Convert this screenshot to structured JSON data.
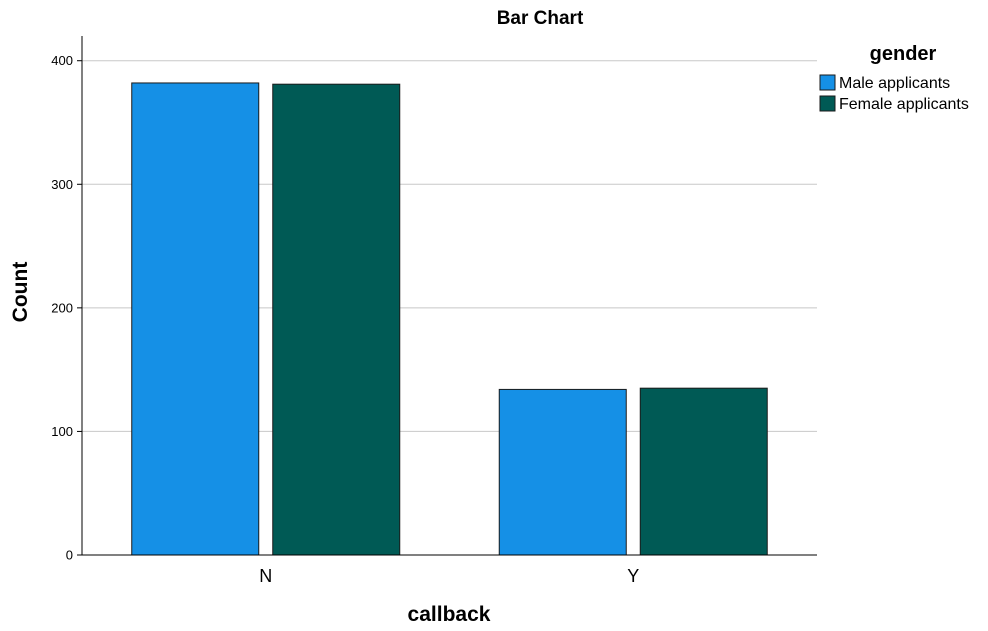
{
  "chart_data": {
    "type": "bar",
    "title": "Bar Chart",
    "xlabel": "callback",
    "ylabel": "Count",
    "categories": [
      "N",
      "Y"
    ],
    "series": [
      {
        "name": "Male applicants",
        "values": [
          382,
          134
        ],
        "color": "#1590e6"
      },
      {
        "name": "Female applicants",
        "values": [
          381,
          135
        ],
        "color": "#005a55"
      }
    ],
    "ylim": [
      0,
      420
    ],
    "yticks": [
      0,
      100,
      200,
      300,
      400
    ],
    "grid": true,
    "legend": {
      "title": "gender",
      "placement": "right"
    }
  }
}
